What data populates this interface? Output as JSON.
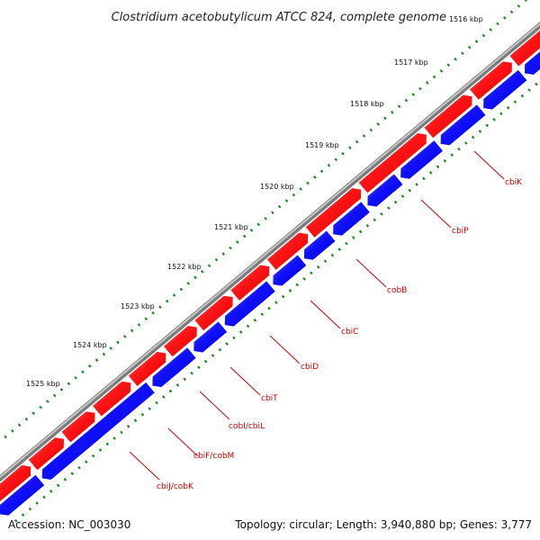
{
  "title": "Clostridium acetobutylicum ATCC 824, complete genome",
  "scale_labels": [
    "1516 kbp",
    "1517 kbp",
    "1518 kbp",
    "1519 kbp",
    "1520 kbp",
    "1521 kbp",
    "1522 kbp",
    "1523 kbp",
    "1524 kbp",
    "1525 kbp"
  ],
  "gene_labels": [
    "cbiK",
    "cbiP",
    "cobB",
    "cbiC",
    "cbiD",
    "cbiT",
    "cobI/cbiL",
    "cbiF/cobM",
    "cbiJ/cobK"
  ],
  "footer": {
    "accession": "Accession: NC_003030",
    "stats": "Topology: circular; Length: 3,940,880 bp; Genes: 3,777"
  },
  "colors": {
    "forward_strand": "#e8000b",
    "reverse_strand": "#0000e6",
    "backbone": "#909090",
    "ticks": "#1f8a1f",
    "gene_label": "#cc0000"
  }
}
